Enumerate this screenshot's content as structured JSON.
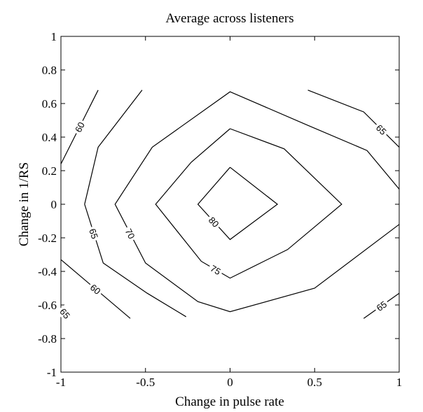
{
  "chart_data": {
    "type": "contour",
    "title": "Average across listeners",
    "x_label": "Change in pulse rate",
    "y_label": "Change in 1/RS",
    "xlim": [
      -1,
      1
    ],
    "ylim": [
      -1,
      1
    ],
    "xticks": [
      -1,
      -0.5,
      0,
      0.5,
      1
    ],
    "yticks": [
      -1,
      -0.8,
      -0.6,
      -0.4,
      -0.2,
      0,
      0.2,
      0.4,
      0.6,
      0.8,
      1
    ],
    "color": "#000000",
    "contours": [
      {
        "level": 80,
        "x": [
          0,
          0.28,
          0,
          -0.19,
          0
        ],
        "y": [
          0.22,
          0,
          -0.21,
          0,
          0.22
        ]
      },
      {
        "level": 75,
        "x": [
          0,
          0.32,
          0.66,
          0.34,
          0,
          -0.17,
          -0.44,
          -0.23,
          0
        ],
        "y": [
          0.45,
          0.33,
          0,
          -0.27,
          -0.44,
          -0.34,
          0,
          0.25,
          0.45
        ]
      },
      {
        "level": 70,
        "x": [
          1,
          0.81,
          0.46,
          0,
          -0.46,
          -0.68,
          -0.5,
          -0.19,
          0,
          0.5,
          1
        ],
        "y": [
          0.09,
          0.32,
          0.47,
          0.67,
          0.34,
          0,
          -0.35,
          -0.58,
          -0.64,
          -0.5,
          -0.12
        ]
      },
      {
        "level": 65,
        "x": [
          -0.52,
          -0.78,
          -0.86,
          -0.75,
          -0.49,
          -0.26
        ],
        "y": [
          0.68,
          0.34,
          0,
          -0.35,
          -0.53,
          -0.67
        ]
      },
      {
        "level": 65,
        "x": [
          0.46,
          0.79,
          1
        ],
        "y": [
          0.68,
          0.55,
          0.34
        ]
      },
      {
        "level": 65,
        "x": [
          0.79,
          1
        ],
        "y": [
          -0.68,
          -0.53
        ]
      },
      {
        "level": 65,
        "x": [
          -1,
          -0.95
        ],
        "y": [
          -0.62,
          -0.68
        ]
      },
      {
        "level": 60,
        "x": [
          -0.78,
          -1
        ],
        "y": [
          0.68,
          0.24
        ]
      },
      {
        "level": 60,
        "x": [
          -1,
          -0.59
        ],
        "y": [
          -0.33,
          -0.68
        ]
      }
    ]
  }
}
